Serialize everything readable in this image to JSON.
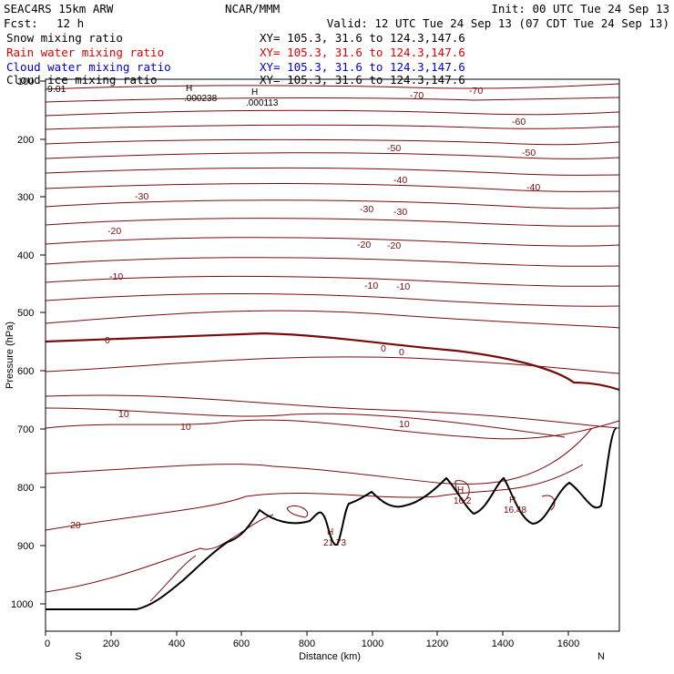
{
  "header": {
    "model": "SEAC4RS 15km ARW",
    "org": "NCAR/MMM",
    "init": "Init: 00 UTC Tue 24 Sep 13",
    "fcst_label": "Fcst:",
    "fcst_value": "12 h",
    "valid": "Valid: 12 UTC Tue 24 Sep 13 (07 CDT Tue 24 Sep 13)"
  },
  "fields": [
    {
      "label": "Snow mixing ratio",
      "xy": "XY= 105.3, 31.6 to 124.3,147.6",
      "color": "#000000"
    },
    {
      "label": "Rain water mixing ratio",
      "xy": "XY= 105.3, 31.6 to 124.3,147.6",
      "color": "#e00000"
    },
    {
      "label": "Cloud water mixing ratio",
      "xy": "XY= 105.3, 31.6 to 124.3,147.6",
      "color": "#0000d0"
    },
    {
      "label": "Cloud ice mixing ratio",
      "xy": "XY= 105.3, 31.6 to 124.3,147.6",
      "color": "#000000"
    }
  ],
  "axes": {
    "y_label": "Pressure (hPa)",
    "y_ticks": [
      "100",
      "200",
      "300",
      "400",
      "500",
      "600",
      "700",
      "800",
      "900",
      "1000"
    ],
    "x_label": "Distance (km)",
    "x_ticks": [
      "0",
      "200",
      "400",
      "600",
      "800",
      "1000",
      "1200",
      "1400",
      "1600"
    ],
    "left_end": "S",
    "right_end": "N"
  },
  "contour_labels": [
    "9.01",
    "-70",
    "-70",
    "-60",
    "-50",
    "-50",
    "-40",
    "-40",
    "-30",
    "-30",
    "-30",
    "-20",
    "-20",
    "-20",
    "-10",
    "-10",
    "-10",
    "0",
    "0",
    "0",
    "10",
    "10",
    "10",
    "20"
  ],
  "extrema": [
    {
      "mark": "H",
      "value": ".000238"
    },
    {
      "mark": "H",
      "value": ".000113"
    },
    {
      "mark": "H",
      "value": "21.73"
    },
    {
      "mark": "H",
      "value": "16.2"
    },
    {
      "mark": "H",
      "value": "16.48"
    }
  ],
  "colors": {
    "contour": "#7a0a0a",
    "frame": "#000000",
    "terrain": "#000000"
  }
}
